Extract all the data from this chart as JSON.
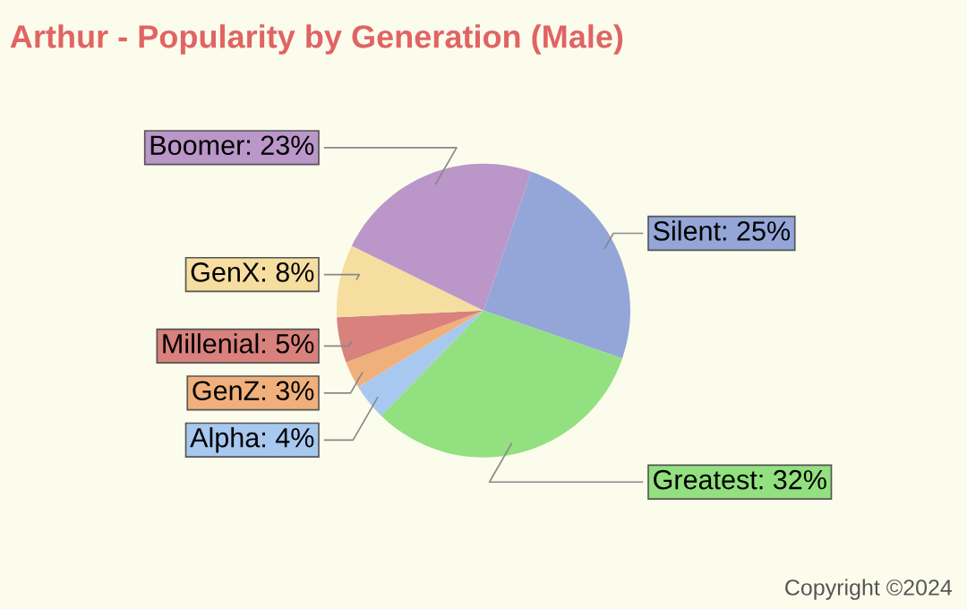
{
  "chart_data": {
    "type": "pie",
    "title": "Arthur - Popularity by Generation (Male)",
    "categories": [
      "Silent",
      "Greatest",
      "Alpha",
      "GenZ",
      "Millenial",
      "GenX",
      "Boomer"
    ],
    "values": [
      25,
      32,
      4,
      3,
      5,
      8,
      23
    ],
    "value_labels": [
      "25%",
      "32%",
      "4%",
      "3%",
      "5%",
      "8%",
      "23%"
    ],
    "colors": [
      "#94a6d8",
      "#92e07f",
      "#a7c8ef",
      "#f0b07c",
      "#d8817d",
      "#f6dea0",
      "#bb96c8"
    ],
    "annotations": [
      "Copyright ©2024"
    ],
    "legend": false
  }
}
